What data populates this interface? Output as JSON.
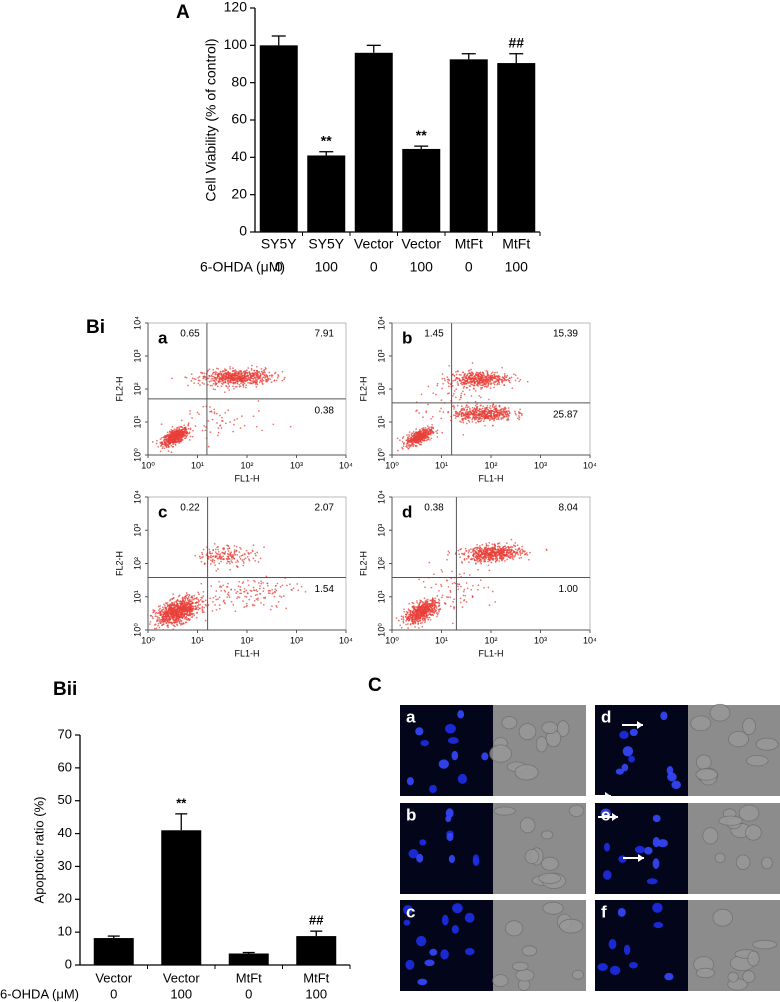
{
  "figure": {
    "panel_labels": [
      "A",
      "Bi",
      "Bii",
      "C"
    ]
  },
  "chart_data": [
    {
      "type": "bar",
      "ylabel": "Cell Viability (% of control)",
      "categories": [
        "SY5Y",
        "SY5Y",
        "Vector",
        "Vector",
        "MtFt",
        "MtFt"
      ],
      "treatment_label": "6-OHDA (μM)",
      "doses": [
        "0",
        "100",
        "0",
        "100",
        "0",
        "100"
      ],
      "values": [
        100,
        41,
        96,
        44.5,
        92.5,
        90.5
      ],
      "errors": [
        5,
        2,
        4,
        1.5,
        3,
        5
      ],
      "annotations": [
        null,
        "**",
        null,
        "**",
        null,
        "##"
      ],
      "color": "#000000",
      "ylim": [
        0,
        120
      ],
      "yticks": [
        0,
        20,
        40,
        60,
        80,
        100,
        120
      ]
    },
    {
      "type": "flow",
      "panel": "a",
      "xlabel": "FL1-H",
      "ylabel": "FL2-H",
      "log": true,
      "xlim": [
        1,
        10000
      ],
      "ylim": [
        1,
        10000
      ],
      "xticks": [
        {
          "value": 1,
          "label": "10⁰"
        },
        {
          "value": 10,
          "label": "10¹"
        },
        {
          "value": 100,
          "label": "10²"
        },
        {
          "value": 1000,
          "label": "10³"
        },
        {
          "value": 10000,
          "label": "10⁴"
        }
      ],
      "yticks": [
        {
          "value": 1,
          "label": "10⁰"
        },
        {
          "value": 10,
          "label": "10¹"
        },
        {
          "value": 100,
          "label": "10²"
        },
        {
          "value": 1000,
          "label": "10³"
        },
        {
          "value": 10000,
          "label": "10⁴"
        }
      ],
      "gates": {
        "x": 15.5,
        "y": 50
      },
      "quadrants": {
        "values": [
          0.65,
          7.91,
          0.38
        ]
      },
      "color": "#e8403a"
    },
    {
      "type": "flow",
      "panel": "b",
      "xlabel": "FL1-H",
      "ylabel": "FL2-H",
      "log": true,
      "xlim": [
        1,
        10000
      ],
      "ylim": [
        1,
        10000
      ],
      "xticks": [
        {
          "value": 1,
          "label": "10⁰"
        },
        {
          "value": 10,
          "label": "10¹"
        },
        {
          "value": 100,
          "label": "10²"
        },
        {
          "value": 1000,
          "label": "10³"
        },
        {
          "value": 10000,
          "label": "10⁴"
        }
      ],
      "yticks": [
        {
          "value": 1,
          "label": "10⁰"
        },
        {
          "value": 10,
          "label": "10¹"
        },
        {
          "value": 100,
          "label": "10²"
        },
        {
          "value": 1000,
          "label": "10³"
        },
        {
          "value": 10000,
          "label": "10⁴"
        }
      ],
      "gates": {
        "x": 16,
        "y": 38
      },
      "quadrants": {
        "values": [
          1.45,
          15.39,
          25.87
        ]
      },
      "color": "#e8403a"
    },
    {
      "type": "flow",
      "panel": "c",
      "xlabel": "FL1-H",
      "ylabel": "FL2-H",
      "log": true,
      "xlim": [
        1,
        10000
      ],
      "ylim": [
        1,
        10000
      ],
      "xticks": [
        {
          "value": 1,
          "label": "10⁰"
        },
        {
          "value": 10,
          "label": "10¹"
        },
        {
          "value": 100,
          "label": "10²"
        },
        {
          "value": 1000,
          "label": "10³"
        },
        {
          "value": 10000,
          "label": "10⁴"
        }
      ],
      "yticks": [
        {
          "value": 1,
          "label": "10⁰"
        },
        {
          "value": 10,
          "label": "10¹"
        },
        {
          "value": 100,
          "label": "10²"
        },
        {
          "value": 1000,
          "label": "10³"
        },
        {
          "value": 10000,
          "label": "10⁴"
        }
      ],
      "gates": {
        "x": 16,
        "y": 38
      },
      "quadrants": {
        "values": [
          0.22,
          2.07,
          1.54
        ]
      },
      "color": "#e8403a"
    },
    {
      "type": "flow",
      "panel": "d",
      "xlabel": "FL1-H",
      "ylabel": "FL2-H",
      "log": true,
      "xlim": [
        1,
        10000
      ],
      "ylim": [
        1,
        10000
      ],
      "xticks": [
        {
          "value": 1,
          "label": "10⁰"
        },
        {
          "value": 10,
          "label": "10¹"
        },
        {
          "value": 100,
          "label": "10²"
        },
        {
          "value": 1000,
          "label": "10³"
        },
        {
          "value": 10000,
          "label": "10⁴"
        }
      ],
      "yticks": [
        {
          "value": 1,
          "label": "10⁰"
        },
        {
          "value": 10,
          "label": "10¹"
        },
        {
          "value": 100,
          "label": "10²"
        },
        {
          "value": 1000,
          "label": "10³"
        },
        {
          "value": 10000,
          "label": "10⁴"
        }
      ],
      "gates": {
        "x": 20,
        "y": 38
      },
      "quadrants": {
        "values": [
          0.38,
          8.04,
          1
        ],
        "value_labels": [
          "0.38",
          "8.04",
          "1.00"
        ]
      },
      "color": "#e8403a"
    },
    {
      "type": "bar",
      "ylabel": "Apoptotic ratio (%)",
      "categories": [
        "Vector",
        "Vector",
        "MtFt",
        "MtFt"
      ],
      "treatment_label": "6-OHDA (μM)",
      "doses": [
        "0",
        "100",
        "0",
        "100"
      ],
      "values": [
        8.2,
        41,
        3.5,
        8.8
      ],
      "errors": [
        0.6,
        5,
        0.3,
        1.5
      ],
      "annotations": [
        null,
        "**",
        null,
        "##"
      ],
      "color": "#000000",
      "ylim": [
        0,
        70
      ],
      "yticks": [
        0,
        10,
        20,
        30,
        40,
        50,
        60,
        70
      ]
    }
  ],
  "microscopy": {
    "labels": [
      "a",
      "b",
      "c",
      "d",
      "e",
      "f"
    ]
  }
}
